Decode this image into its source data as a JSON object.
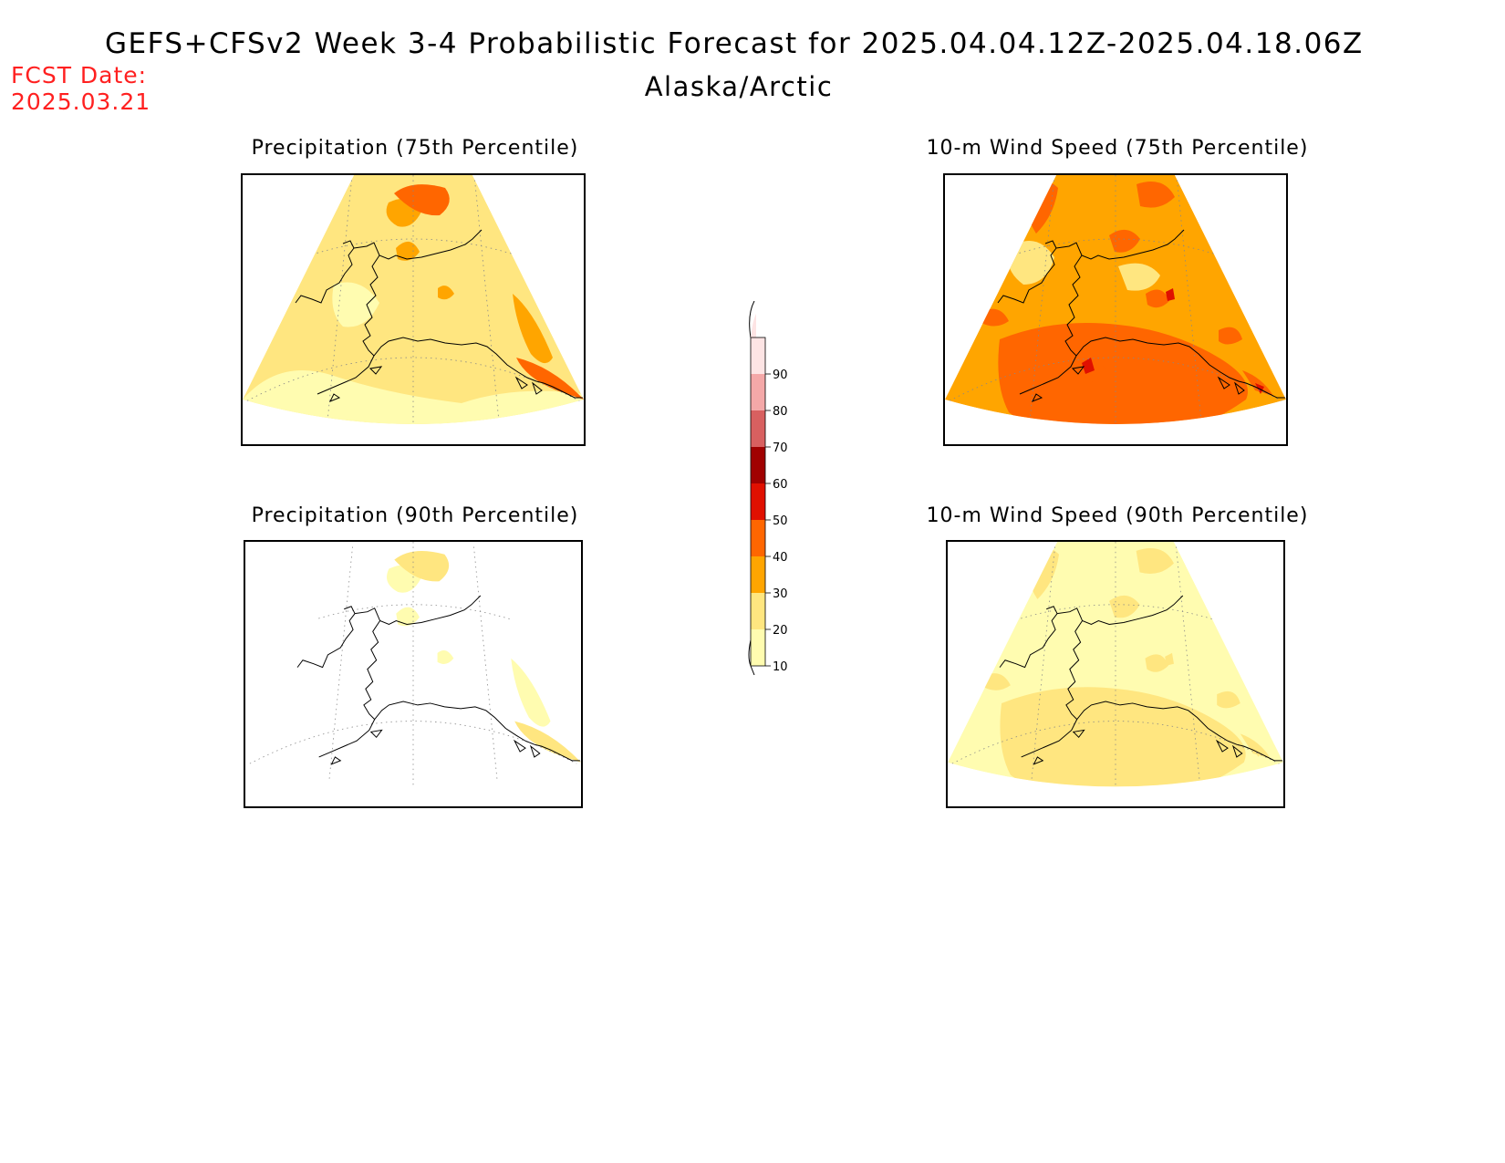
{
  "header": {
    "title": "GEFS+CFSv2 Week 3-4 Probabilistic Forecast for 2025.04.04.12Z-2025.04.18.06Z",
    "region": "Alaska/Arctic",
    "fcst_label": "FCST Date:",
    "fcst_date": "2025.03.21"
  },
  "panels": [
    {
      "id": "precip75",
      "title": "Precipitation (75th Percentile)",
      "field": "precip",
      "base_level": 20,
      "hotspot_level": 30,
      "edge_level": 40,
      "peak_level": 40
    },
    {
      "id": "wind75",
      "title": "10-m Wind Speed (75th Percentile)",
      "field": "wind",
      "base_level": 30,
      "hotspot_level": 40,
      "edge_level": 40,
      "peak_level": 50
    },
    {
      "id": "precip90",
      "title": "Precipitation (90th Percentile)",
      "field": "precip",
      "base_level": 0,
      "hotspot_level": 10,
      "edge_level": 20,
      "peak_level": 20
    },
    {
      "id": "wind90",
      "title": "10-m Wind Speed (90th Percentile)",
      "field": "wind",
      "base_level": 10,
      "hotspot_level": 20,
      "edge_level": 20,
      "peak_level": 20
    }
  ],
  "colorbar": {
    "ticks": [
      "10",
      "20",
      "30",
      "40",
      "50",
      "60",
      "70",
      "80",
      "90"
    ],
    "colors": [
      "#fffcb0",
      "#ffe680",
      "#ffa500",
      "#ff6600",
      "#e01000",
      "#a00000",
      "#d86060",
      "#f4a8a8",
      "#fde4e4"
    ]
  }
}
